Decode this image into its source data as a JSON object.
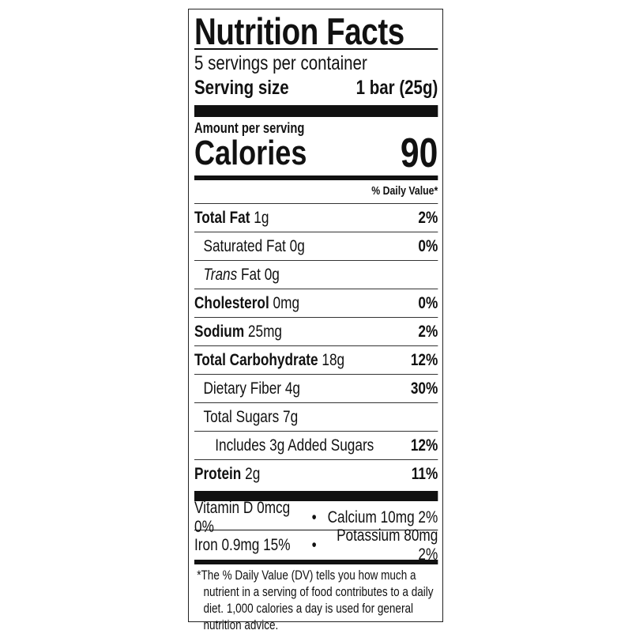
{
  "title": "Nutrition Facts",
  "servings_per_container": "5 servings per container",
  "serving_size": {
    "label": "Serving size",
    "value": "1 bar (25g)"
  },
  "amount_per_serving": "Amount per serving",
  "calories": {
    "label": "Calories",
    "value": "90"
  },
  "daily_value_header": "% Daily Value*",
  "nutrients": [
    {
      "name": "Total Fat",
      "amount": "1g",
      "dv": "2%"
    },
    {
      "name": "Saturated Fat",
      "amount": "0g",
      "dv": "0%"
    },
    {
      "name": "Trans",
      "name_suffix": "Fat",
      "amount": "0g",
      "dv": ""
    },
    {
      "name": "Cholesterol",
      "amount": "0mg",
      "dv": "0%"
    },
    {
      "name": "Sodium",
      "amount": "25mg",
      "dv": "2%"
    },
    {
      "name": "Total Carbohydrate",
      "amount": "18g",
      "dv": "12%"
    },
    {
      "name": "Dietary Fiber",
      "amount": "4g",
      "dv": "30%"
    },
    {
      "name": "Total Sugars",
      "amount": "7g",
      "dv": ""
    },
    {
      "name": "Includes 3g Added Sugars",
      "amount": "",
      "dv": "12%"
    },
    {
      "name": "Protein",
      "amount": "2g",
      "dv": "11%"
    }
  ],
  "vitamins": [
    {
      "left": "Vitamin D 0mcg 0%",
      "bullet": "•",
      "right": "Calcium 10mg 2%"
    },
    {
      "left": "Iron 0.9mg 15%",
      "bullet": "•",
      "right": "Potassium 80mg 2%"
    }
  ],
  "footnote": "*The % Daily Value (DV) tells you how much a nutrient in a serving of food contributes to a daily diet. 1,000 calories a day is used for general nutrition advice."
}
